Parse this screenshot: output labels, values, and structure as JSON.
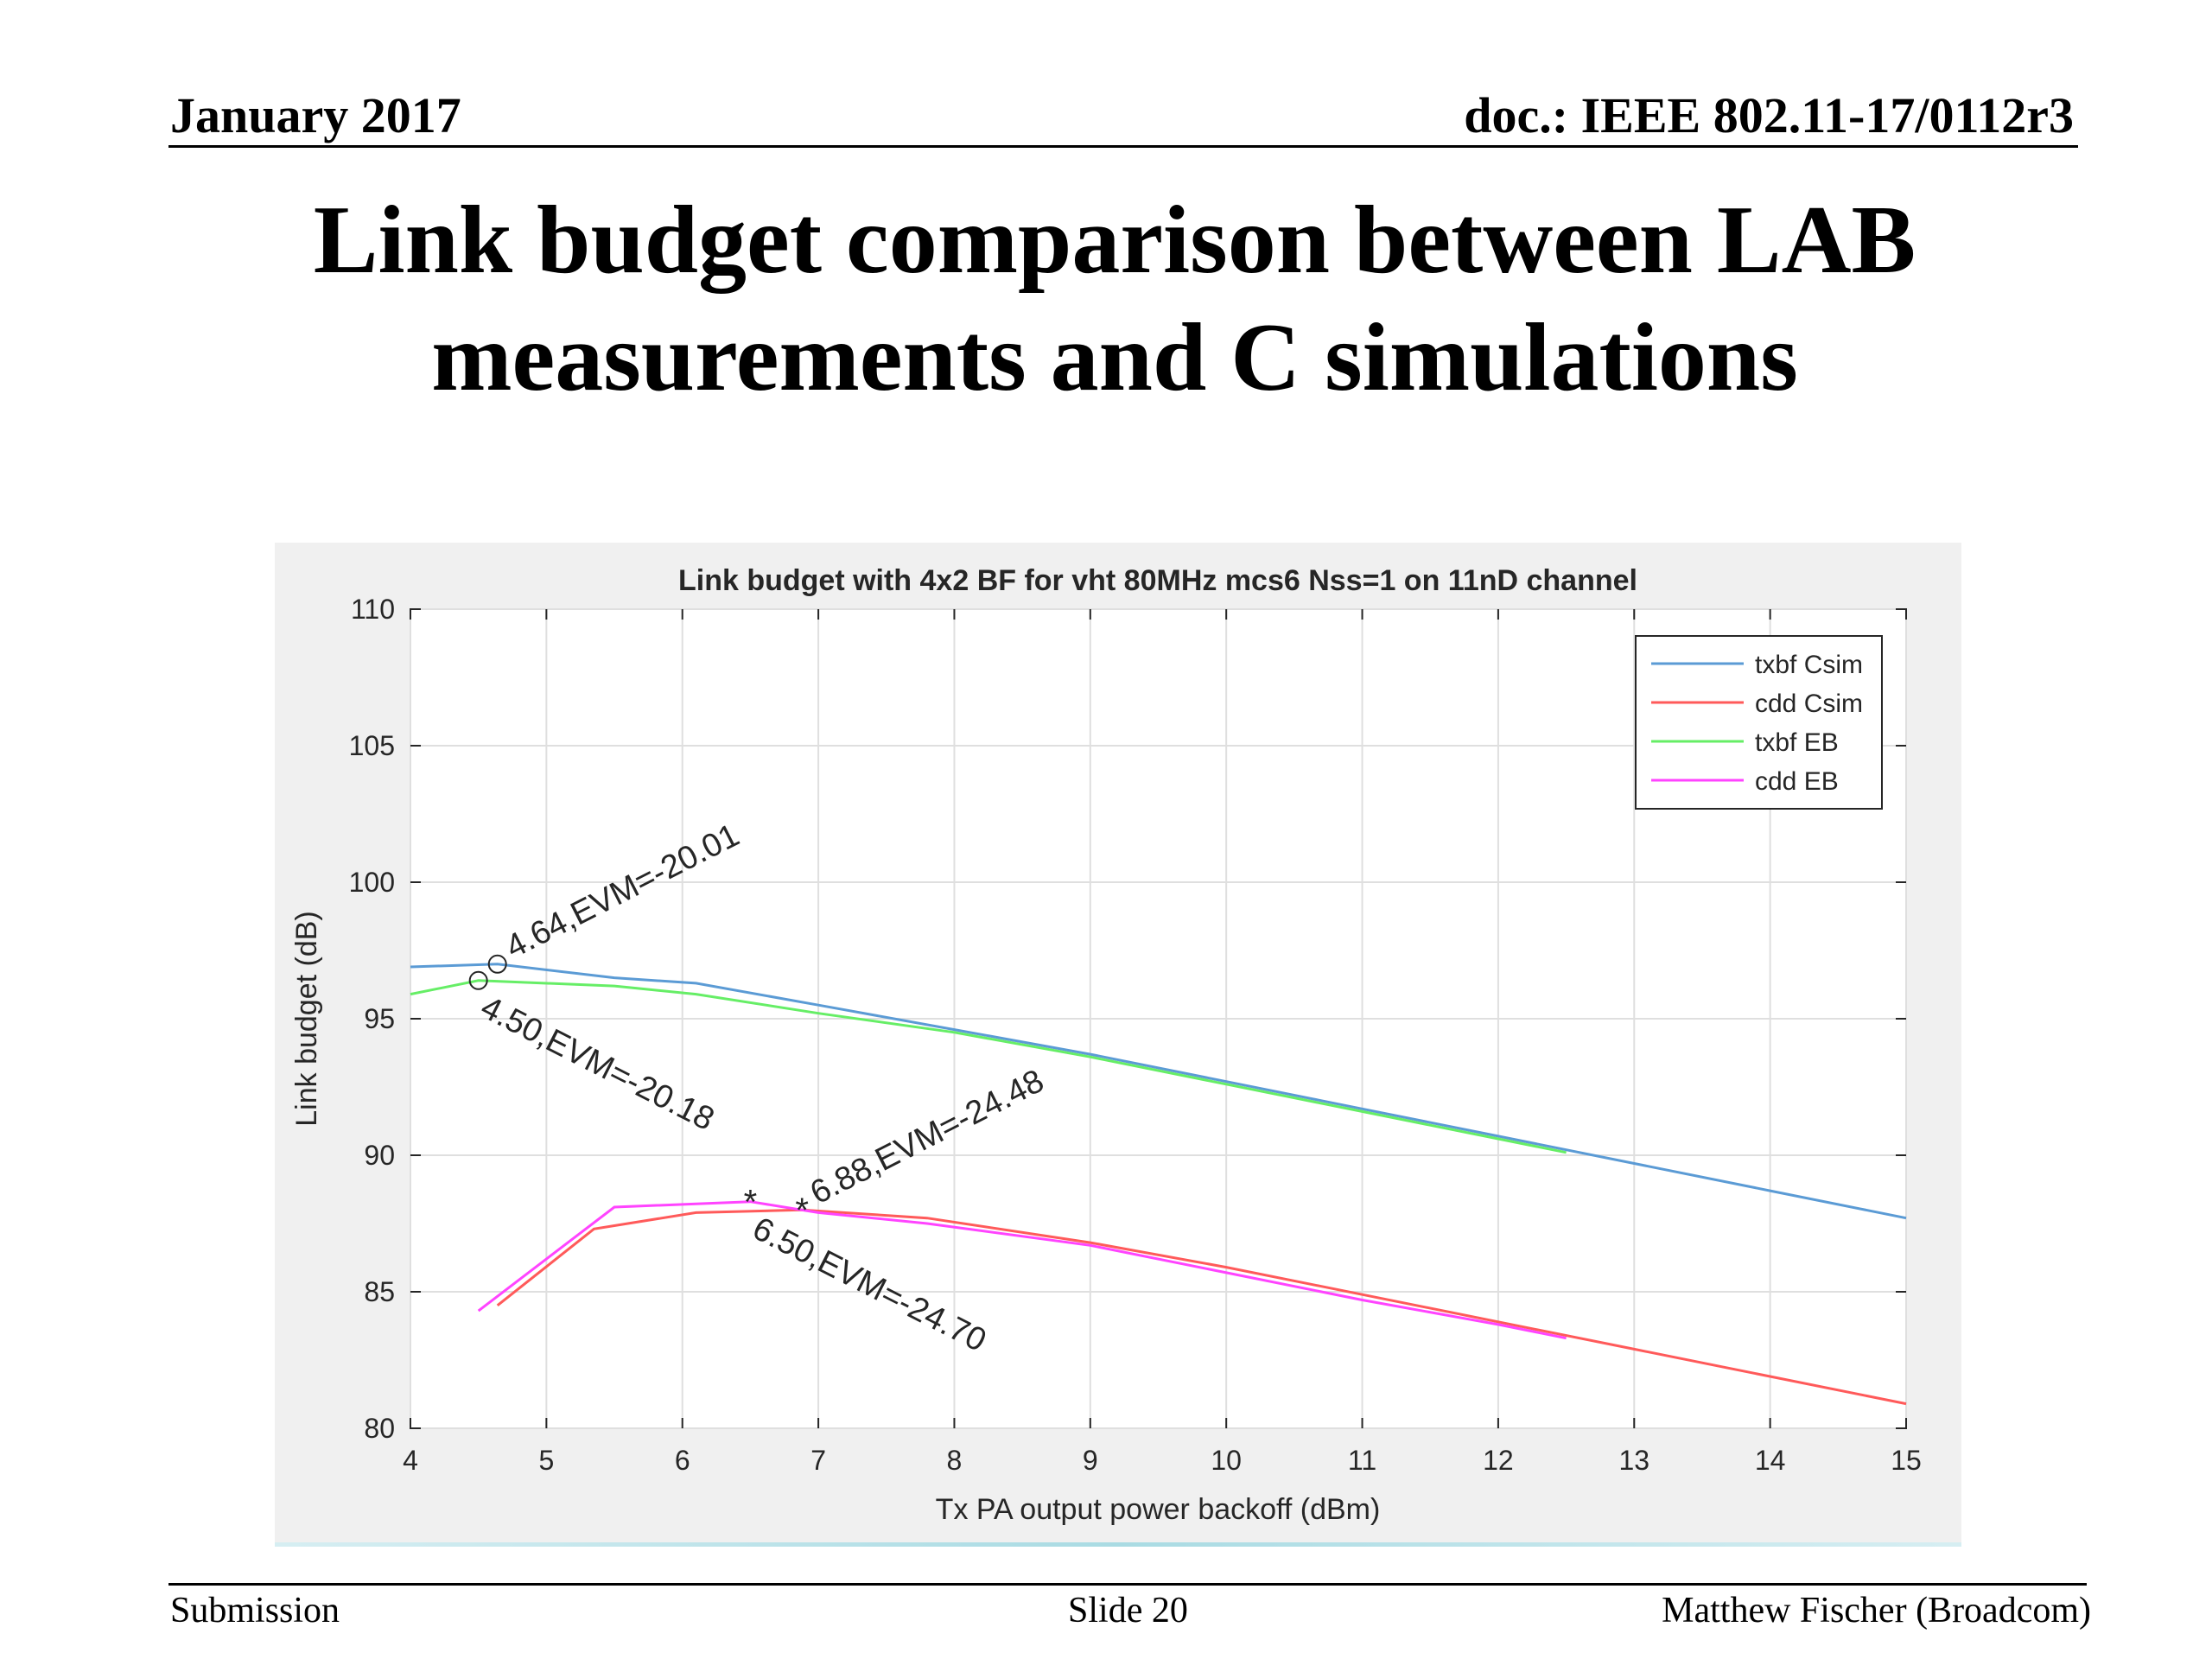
{
  "header": {
    "date": "January 2017",
    "doc_id": "doc.: IEEE 802.11-17/0112r3"
  },
  "slide_title": {
    "line1": "Link budget comparison between LAB",
    "line2": "measurements and C simulations"
  },
  "footer": {
    "left": "Submission",
    "center": "Slide 20",
    "right": "Matthew Fischer (Broadcom)"
  },
  "chart_data": {
    "type": "line",
    "title": "Link budget with 4x2 BF for vht 80MHz mcs6 Nss=1 on 11nD channel",
    "xlabel": "Tx PA output power backoff (dBm)",
    "ylabel": "Link budget (dB)",
    "xlim": [
      4,
      15
    ],
    "ylim": [
      80,
      110
    ],
    "xticks": [
      4,
      5,
      6,
      7,
      8,
      9,
      10,
      11,
      12,
      13,
      14,
      15
    ],
    "yticks": [
      80,
      85,
      90,
      95,
      100,
      105,
      110
    ],
    "grid": true,
    "legend_position": "top-right",
    "series": [
      {
        "name": "txbf Csim",
        "color": "#5b9bd5",
        "x": [
          4,
          4.64,
          5.5,
          6.1,
          7,
          8,
          9,
          10,
          11,
          12,
          13,
          14,
          15
        ],
        "y": [
          96.9,
          97.0,
          96.5,
          96.3,
          95.5,
          94.6,
          93.7,
          92.7,
          91.7,
          90.7,
          89.7,
          88.7,
          87.7
        ]
      },
      {
        "name": "cdd Csim",
        "color": "#ff5a5a",
        "x": [
          4.64,
          5.35,
          6.1,
          6.88,
          7.8,
          9,
          10,
          11,
          12,
          13,
          14,
          15
        ],
        "y": [
          84.5,
          87.3,
          87.9,
          88.0,
          87.7,
          86.8,
          85.9,
          84.9,
          83.9,
          82.9,
          81.9,
          80.9
        ]
      },
      {
        "name": "txbf EB",
        "color": "#66ee66",
        "x": [
          4,
          4.5,
          5.5,
          6.1,
          7,
          8,
          9,
          10,
          11,
          12,
          12.5
        ],
        "y": [
          95.9,
          96.4,
          96.2,
          95.9,
          95.2,
          94.5,
          93.6,
          92.6,
          91.6,
          90.6,
          90.1
        ]
      },
      {
        "name": "cdd EB",
        "color": "#ff44ff",
        "x": [
          4.5,
          5.5,
          6.5,
          7,
          7.8,
          9,
          10,
          11,
          12,
          12.5
        ],
        "y": [
          84.3,
          88.1,
          88.3,
          87.9,
          87.5,
          86.7,
          85.7,
          84.7,
          83.8,
          83.3
        ]
      }
    ],
    "annotations": [
      {
        "text": "4.64,EVM=-20.01",
        "x": 4.64,
        "y": 97.0,
        "marker": "circle"
      },
      {
        "text": "4.50,EVM=-20.18",
        "x": 4.5,
        "y": 96.4,
        "marker": "circle"
      },
      {
        "text": "6.88,EVM=-24.48",
        "x": 6.88,
        "y": 88.0,
        "marker": "asterisk"
      },
      {
        "text": "6.50,EVM=-24.70",
        "x": 6.5,
        "y": 88.3,
        "marker": "asterisk"
      }
    ]
  }
}
